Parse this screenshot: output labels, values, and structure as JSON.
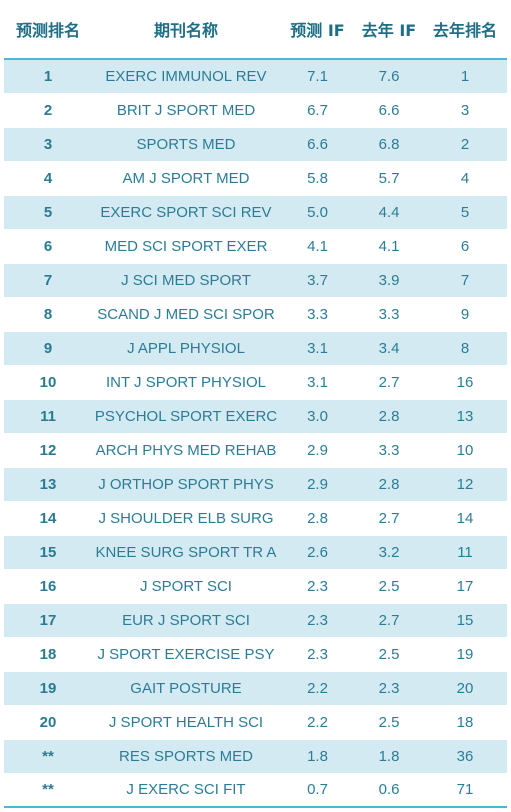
{
  "table": {
    "headers": [
      "预测排名",
      "期刊名称",
      "预测 IF",
      "去年 IF",
      "去年排名"
    ],
    "rows": [
      [
        "1",
        "EXERC IMMUNOL REV",
        "7.1",
        "7.6",
        "1"
      ],
      [
        "2",
        "BRIT J SPORT MED",
        "6.7",
        "6.6",
        "3"
      ],
      [
        "3",
        "SPORTS MED",
        "6.6",
        "6.8",
        "2"
      ],
      [
        "4",
        "AM J SPORT MED",
        "5.8",
        "5.7",
        "4"
      ],
      [
        "5",
        "EXERC SPORT SCI REV",
        "5.0",
        "4.4",
        "5"
      ],
      [
        "6",
        "MED SCI SPORT EXER",
        "4.1",
        "4.1",
        "6"
      ],
      [
        "7",
        "J SCI MED SPORT",
        "3.7",
        "3.9",
        "7"
      ],
      [
        "8",
        "SCAND J MED SCI SPOR",
        "3.3",
        "3.3",
        "9"
      ],
      [
        "9",
        "J APPL PHYSIOL",
        "3.1",
        "3.4",
        "8"
      ],
      [
        "10",
        "INT J SPORT PHYSIOL",
        "3.1",
        "2.7",
        "16"
      ],
      [
        "11",
        "PSYCHOL SPORT EXERC",
        "3.0",
        "2.8",
        "13"
      ],
      [
        "12",
        "ARCH PHYS MED REHAB",
        "2.9",
        "3.3",
        "10"
      ],
      [
        "13",
        "J ORTHOP SPORT PHYS",
        "2.9",
        "2.8",
        "12"
      ],
      [
        "14",
        "J SHOULDER ELB SURG",
        "2.8",
        "2.7",
        "14"
      ],
      [
        "15",
        "KNEE SURG SPORT TR A",
        "2.6",
        "3.2",
        "11"
      ],
      [
        "16",
        "J SPORT SCI",
        "2.3",
        "2.5",
        "17"
      ],
      [
        "17",
        "EUR J SPORT SCI",
        "2.3",
        "2.7",
        "15"
      ],
      [
        "18",
        "J SPORT EXERCISE PSY",
        "2.3",
        "2.5",
        "19"
      ],
      [
        "19",
        "GAIT POSTURE",
        "2.2",
        "2.3",
        "20"
      ],
      [
        "20",
        "J SPORT HEALTH SCI",
        "2.2",
        "2.5",
        "18"
      ],
      [
        "**",
        "RES SPORTS MED",
        "1.8",
        "1.8",
        "36"
      ],
      [
        "**",
        "J EXERC SCI   FIT",
        "0.7",
        "0.6",
        "71"
      ]
    ]
  },
  "colors": {
    "header_text": "#1e6f86",
    "cell_text": "#2a7d95",
    "shaded_row": "#d4eaf3",
    "rule": "#4fb6d3"
  }
}
